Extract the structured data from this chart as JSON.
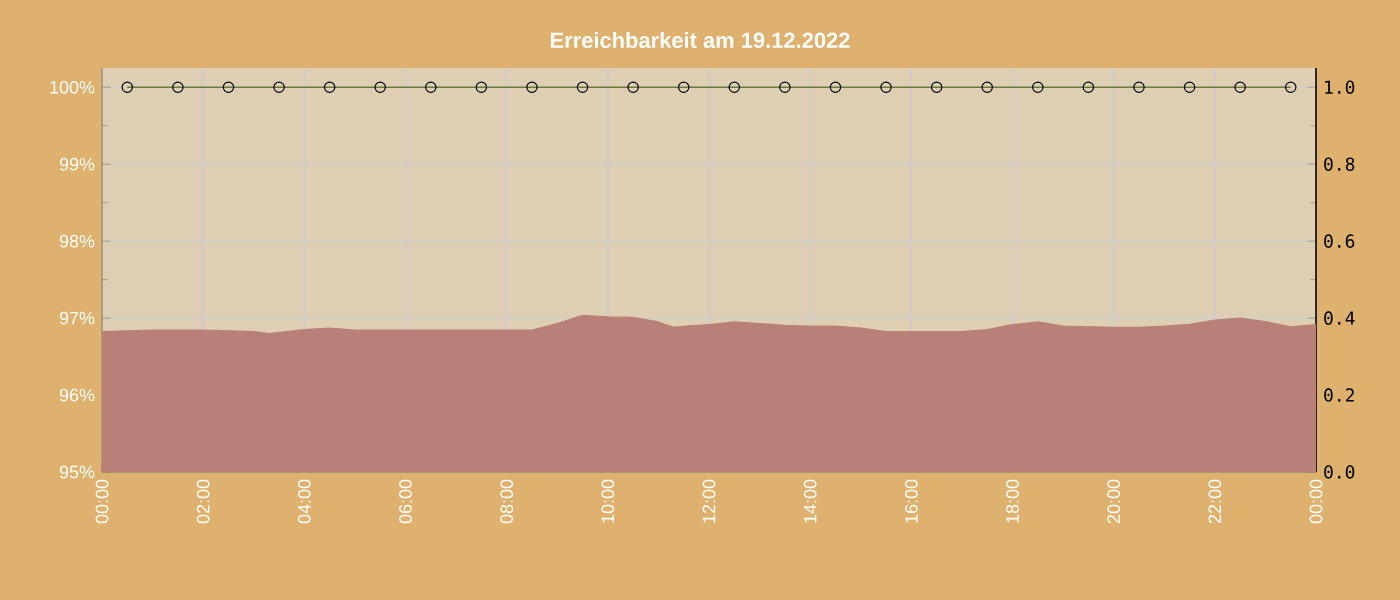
{
  "chart_data": {
    "type": "line",
    "title": "Erreichbarkeit am 19.12.2022",
    "xlim": [
      0,
      24
    ],
    "xticks": [
      {
        "value": 0,
        "label": "00:00"
      },
      {
        "value": 2,
        "label": "02:00"
      },
      {
        "value": 4,
        "label": "04:00"
      },
      {
        "value": 6,
        "label": "06:00"
      },
      {
        "value": 8,
        "label": "08:00"
      },
      {
        "value": 10,
        "label": "10:00"
      },
      {
        "value": 12,
        "label": "12:00"
      },
      {
        "value": 14,
        "label": "14:00"
      },
      {
        "value": 16,
        "label": "16:00"
      },
      {
        "value": 18,
        "label": "18:00"
      },
      {
        "value": 20,
        "label": "20:00"
      },
      {
        "value": 22,
        "label": "22:00"
      },
      {
        "value": 24,
        "label": "00:00"
      }
    ],
    "ylim": [
      95,
      100.25
    ],
    "yticks": [
      {
        "value": 95,
        "label": "95%"
      },
      {
        "value": 96,
        "label": "96%"
      },
      {
        "value": 97,
        "label": "97%"
      },
      {
        "value": 98,
        "label": "98%"
      },
      {
        "value": 99,
        "label": "99%"
      },
      {
        "value": 100,
        "label": "100%"
      }
    ],
    "y2lim": [
      0,
      1.05
    ],
    "y2ticks": [
      {
        "value": 0,
        "label": "0.0"
      },
      0.2,
      0.4,
      0.6,
      0.8,
      {
        "value": 1,
        "label": "1.0"
      }
    ],
    "grid": true,
    "series": [
      {
        "type": "area",
        "axis": "y2",
        "color": "#b98077",
        "x": [
          0,
          1,
          2,
          3,
          3.3,
          4,
          4.5,
          5,
          6,
          7,
          8,
          8.5,
          9,
          9.5,
          10,
          10.5,
          11,
          11.3,
          11.6,
          12,
          12.5,
          13,
          13.5,
          14,
          14.5,
          15,
          15.5,
          16,
          17,
          17.5,
          18,
          18.5,
          19,
          20,
          20.5,
          21,
          21.5,
          22,
          22.5,
          23,
          23.5,
          24
        ],
        "values": [
          0.365,
          0.369,
          0.369,
          0.365,
          0.36,
          0.37,
          0.374,
          0.369,
          0.369,
          0.369,
          0.369,
          0.369,
          0.386,
          0.407,
          0.403,
          0.402,
          0.39,
          0.376,
          0.38,
          0.383,
          0.39,
          0.386,
          0.381,
          0.379,
          0.379,
          0.374,
          0.365,
          0.365,
          0.365,
          0.37,
          0.383,
          0.39,
          0.379,
          0.376,
          0.376,
          0.379,
          0.384,
          0.395,
          0.4,
          0.391,
          0.377,
          0.383
        ]
      },
      {
        "color": "#6b7a3a",
        "marker": "circle",
        "x": [
          0.5,
          1.5,
          2.5,
          3.5,
          4.5,
          5.5,
          6.5,
          7.5,
          8.5,
          9.5,
          10.5,
          11.5,
          12.5,
          13.5,
          14.5,
          15.5,
          16.5,
          17.5,
          18.5,
          19.5,
          20.5,
          21.5,
          22.5,
          23.5
        ],
        "values": [
          100,
          100,
          100,
          100,
          100,
          100,
          100,
          100,
          100,
          100,
          100,
          100,
          100,
          100,
          100,
          100,
          100,
          100,
          100,
          100,
          100,
          100,
          100,
          100
        ]
      }
    ]
  }
}
